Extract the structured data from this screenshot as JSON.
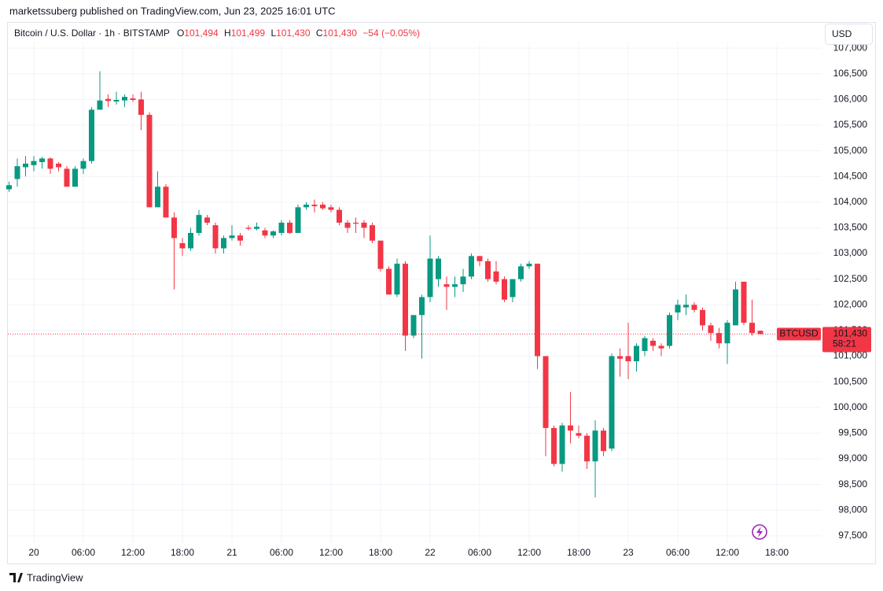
{
  "chart_data": {
    "type": "candlestick",
    "published": "marketssuberg published on TradingView.com, Jun 23, 2025 16:01 UTC",
    "title": "Bitcoin / U.S. Dollar · 1h · BITSTAMP",
    "header": {
      "o_label": "O",
      "o": "101,494",
      "h_label": "H",
      "h": "101,499",
      "l_label": "L",
      "l": "101,430",
      "c_label": "C",
      "c": "101,430",
      "change": "−54 (−0.05%)"
    },
    "currency": "USD",
    "symbol": "BTCUSD",
    "countdown": "58:21",
    "brand": "TradingView",
    "up_color": "#089981",
    "down_color": "#f23645",
    "grid": true,
    "categories": [
      null,
      null,
      null,
      "20",
      null,
      null,
      null,
      null,
      null,
      "06:00",
      null,
      null,
      null,
      null,
      null,
      "12:00",
      null,
      null,
      null,
      null,
      null,
      "18:00",
      null,
      null,
      null,
      null,
      null,
      "21",
      null,
      null,
      null,
      null,
      null,
      "06:00",
      null,
      null,
      null,
      null,
      null,
      "12:00",
      null,
      null,
      null,
      null,
      null,
      "18:00",
      null,
      null,
      null,
      null,
      null,
      "22",
      null,
      null,
      null,
      null,
      null,
      "06:00",
      null,
      null,
      null,
      null,
      null,
      "12:00",
      null,
      null,
      null,
      null,
      null,
      "18:00",
      null,
      null,
      null,
      null,
      null,
      "23",
      null,
      null,
      null,
      null,
      null,
      "06:00",
      null,
      null,
      null,
      null,
      null,
      "12:00",
      null,
      null,
      null,
      null,
      null,
      "18:00"
    ],
    "open": [
      104250,
      104450,
      104680,
      104720,
      104780,
      104850,
      104750,
      104650,
      104300,
      104650,
      104800,
      105800,
      106010,
      105960,
      105980,
      106020,
      106000,
      105700,
      103900,
      104300,
      103700,
      103200,
      103100,
      103400,
      103700,
      103550,
      103100,
      103300,
      103350,
      103500,
      103480,
      103450,
      103350,
      103400,
      103600,
      103400,
      103900,
      103950,
      103950,
      103900,
      103850,
      103600,
      103600,
      103600,
      103550,
      103250,
      102700,
      102200,
      102800,
      101400,
      101800,
      102150,
      102500,
      102400,
      102350,
      102400,
      102550,
      102950,
      102850,
      102650,
      102500,
      102150,
      102500,
      102750,
      102800,
      101000,
      99600,
      98900,
      99650,
      99500,
      99450,
      98950,
      99550,
      99200,
      101000,
      101000,
      100900,
      101100,
      101300,
      101200,
      101200,
      101850,
      101950,
      102000,
      101900,
      101600,
      101450,
      101250,
      101600,
      102450,
      101650,
      101494,
      null,
      null
    ],
    "high": [
      104400,
      104850,
      104900,
      104900,
      104880,
      104870,
      104780,
      104700,
      104700,
      104850,
      105850,
      106550,
      106100,
      106150,
      106100,
      106100,
      106150,
      105750,
      104600,
      104350,
      103800,
      103300,
      103500,
      103850,
      103750,
      103600,
      103350,
      103550,
      103400,
      103550,
      103600,
      103500,
      103450,
      103650,
      103650,
      103950,
      104000,
      104050,
      104000,
      103950,
      103900,
      103650,
      103700,
      103650,
      103600,
      103250,
      102750,
      102900,
      102850,
      101800,
      102200,
      103350,
      102950,
      102550,
      102550,
      102700,
      103000,
      102950,
      102900,
      102850,
      102550,
      102500,
      102800,
      102850,
      102800,
      101000,
      99650,
      99700,
      100300,
      99650,
      99500,
      99750,
      99600,
      101050,
      101150,
      101650,
      101250,
      101400,
      101350,
      101250,
      101850,
      102100,
      102200,
      102050,
      101950,
      101650,
      101550,
      101700,
      102450,
      102450,
      102100,
      101499,
      null,
      null
    ],
    "low": [
      104200,
      104300,
      104500,
      104600,
      104650,
      104550,
      104600,
      104300,
      104300,
      104550,
      104750,
      105800,
      105850,
      105900,
      105850,
      105950,
      105400,
      103900,
      103900,
      103700,
      102300,
      102950,
      103050,
      103350,
      103550,
      103000,
      103000,
      103250,
      103150,
      103450,
      103450,
      103300,
      103300,
      103350,
      103380,
      103400,
      103850,
      103800,
      103850,
      103800,
      103550,
      103400,
      103400,
      103300,
      103200,
      102650,
      102200,
      102150,
      101100,
      101350,
      100950,
      102050,
      102350,
      101900,
      102150,
      102250,
      102500,
      102750,
      102450,
      102400,
      102050,
      102050,
      102450,
      102700,
      100750,
      99050,
      98850,
      98750,
      99300,
      99400,
      98800,
      98250,
      99050,
      99150,
      100600,
      100550,
      100700,
      101000,
      101100,
      101000,
      101150,
      101700,
      101800,
      101850,
      101500,
      101300,
      101150,
      100850,
      101600,
      101600,
      101400,
      101430,
      null,
      null
    ],
    "close": [
      104330,
      104700,
      104750,
      104800,
      104850,
      104650,
      104680,
      104300,
      104650,
      104800,
      105800,
      105980,
      105970,
      105990,
      106050,
      105990,
      105700,
      103900,
      104300,
      103700,
      103300,
      103100,
      103400,
      103750,
      103600,
      103100,
      103300,
      103350,
      103250,
      103480,
      103520,
      103350,
      103430,
      103600,
      103400,
      103900,
      103950,
      103920,
      103880,
      103850,
      103600,
      103500,
      103580,
      103500,
      103250,
      102700,
      102200,
      102800,
      101400,
      101800,
      102150,
      102900,
      102900,
      102350,
      102400,
      102550,
      102950,
      102850,
      102500,
      102450,
      102100,
      102500,
      102750,
      102800,
      101000,
      99600,
      98900,
      99650,
      99550,
      99450,
      98950,
      99550,
      99150,
      101000,
      100950,
      100900,
      101200,
      101350,
      101200,
      101150,
      101800,
      102000,
      102000,
      101900,
      101600,
      101450,
      101250,
      101650,
      102300,
      101650,
      101450,
      101430,
      null,
      null
    ],
    "ylim": [
      97360,
      107140
    ],
    "yticks": [
      {
        "value": 97500,
        "label": "97,500"
      },
      {
        "value": 98000,
        "label": "98,000"
      },
      {
        "value": 98500,
        "label": "98,500"
      },
      {
        "value": 99000,
        "label": "99,000"
      },
      {
        "value": 99500,
        "label": "99,500"
      },
      {
        "value": 100000,
        "label": "100,000"
      },
      {
        "value": 100500,
        "label": "100,500"
      },
      {
        "value": 101000,
        "label": "101,000"
      },
      {
        "value": 101500,
        "label": "101,500"
      },
      {
        "value": 102000,
        "label": "102,000"
      },
      {
        "value": 102500,
        "label": "102,500"
      },
      {
        "value": 103000,
        "label": "103,000"
      },
      {
        "value": 103500,
        "label": "103,500"
      },
      {
        "value": 104000,
        "label": "104,000"
      },
      {
        "value": 104500,
        "label": "104,500"
      },
      {
        "value": 105000,
        "label": "105,000"
      },
      {
        "value": 105500,
        "label": "105,500"
      },
      {
        "value": 106000,
        "label": "106,000"
      },
      {
        "value": 106500,
        "label": "106,500"
      },
      {
        "value": 107000,
        "label": "107,000"
      }
    ]
  }
}
